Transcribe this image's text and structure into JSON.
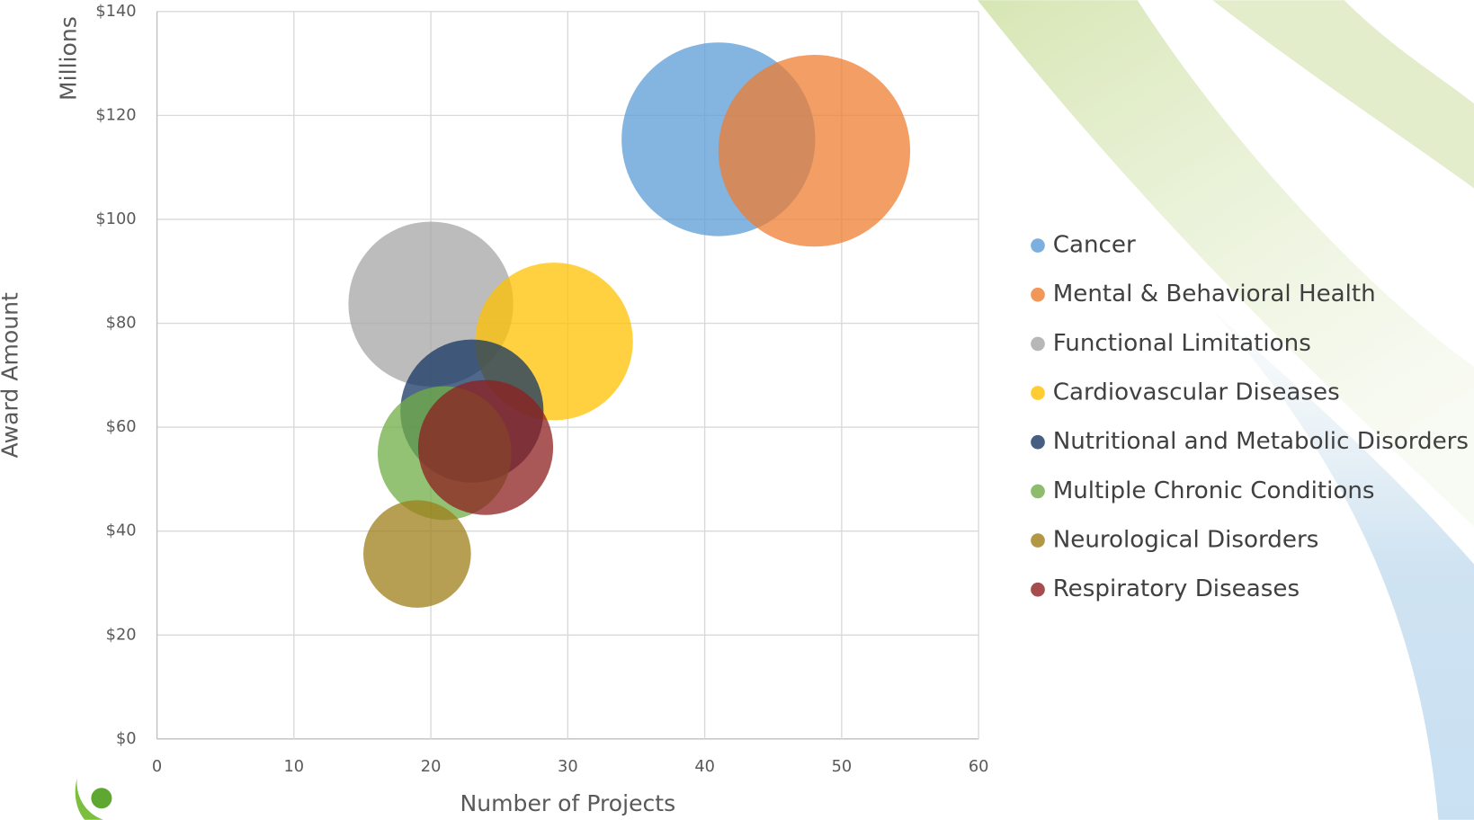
{
  "chart_data": {
    "type": "bubble",
    "y_axis_title": "Award Amount",
    "y_display_units": "Millions",
    "x_axis_title": "Number of Projects",
    "xlim": [
      0,
      60
    ],
    "xticks": [
      0,
      10,
      20,
      30,
      40,
      50,
      60
    ],
    "ylim": [
      0,
      140
    ],
    "yticks": [
      {
        "value": 0,
        "label": "$0"
      },
      {
        "value": 20,
        "label": "$20"
      },
      {
        "value": 40,
        "label": "$40"
      },
      {
        "value": 60,
        "label": "$60"
      },
      {
        "value": 80,
        "label": "$80"
      },
      {
        "value": 100,
        "label": "$100"
      },
      {
        "value": 120,
        "label": "$120"
      },
      {
        "value": 140,
        "label": "$140"
      }
    ],
    "grid": true,
    "legend": "right",
    "series": [
      {
        "name": "Cancer",
        "color": "#5b9bd5",
        "x": [
          41
        ],
        "values": [
          115.4
        ],
        "sizes": [
          115.4
        ]
      },
      {
        "name": "Mental & Behavioral Health",
        "color": "#ed7d31",
        "x": [
          48
        ],
        "values": [
          113.2
        ],
        "sizes": [
          113.2
        ]
      },
      {
        "name": "Functional Limitations",
        "color": "#a5a5a5",
        "x": [
          20
        ],
        "values": [
          83.7
        ],
        "sizes": [
          83.7
        ]
      },
      {
        "name": "Cardiovascular Diseases",
        "color": "#ffc000",
        "x": [
          29
        ],
        "values": [
          76.5
        ],
        "sizes": [
          76.5
        ]
      },
      {
        "name": "Nutritional and Metabolic Disorders",
        "color": "#163661",
        "x": [
          23
        ],
        "values": [
          63.1
        ],
        "sizes": [
          63.1
        ]
      },
      {
        "name": "Multiple Chronic Conditions",
        "color": "#70ad47",
        "x": [
          21
        ],
        "values": [
          55.0
        ],
        "sizes": [
          55.0
        ]
      },
      {
        "name": "Neurological Disorders",
        "color": "#9e7d18",
        "x": [
          19
        ],
        "values": [
          35.6
        ],
        "sizes": [
          35.6
        ]
      },
      {
        "name": "Respiratory Diseases",
        "color": "#8e1f1f",
        "x": [
          24
        ],
        "values": [
          56.1
        ],
        "sizes": [
          56.1
        ]
      }
    ]
  }
}
